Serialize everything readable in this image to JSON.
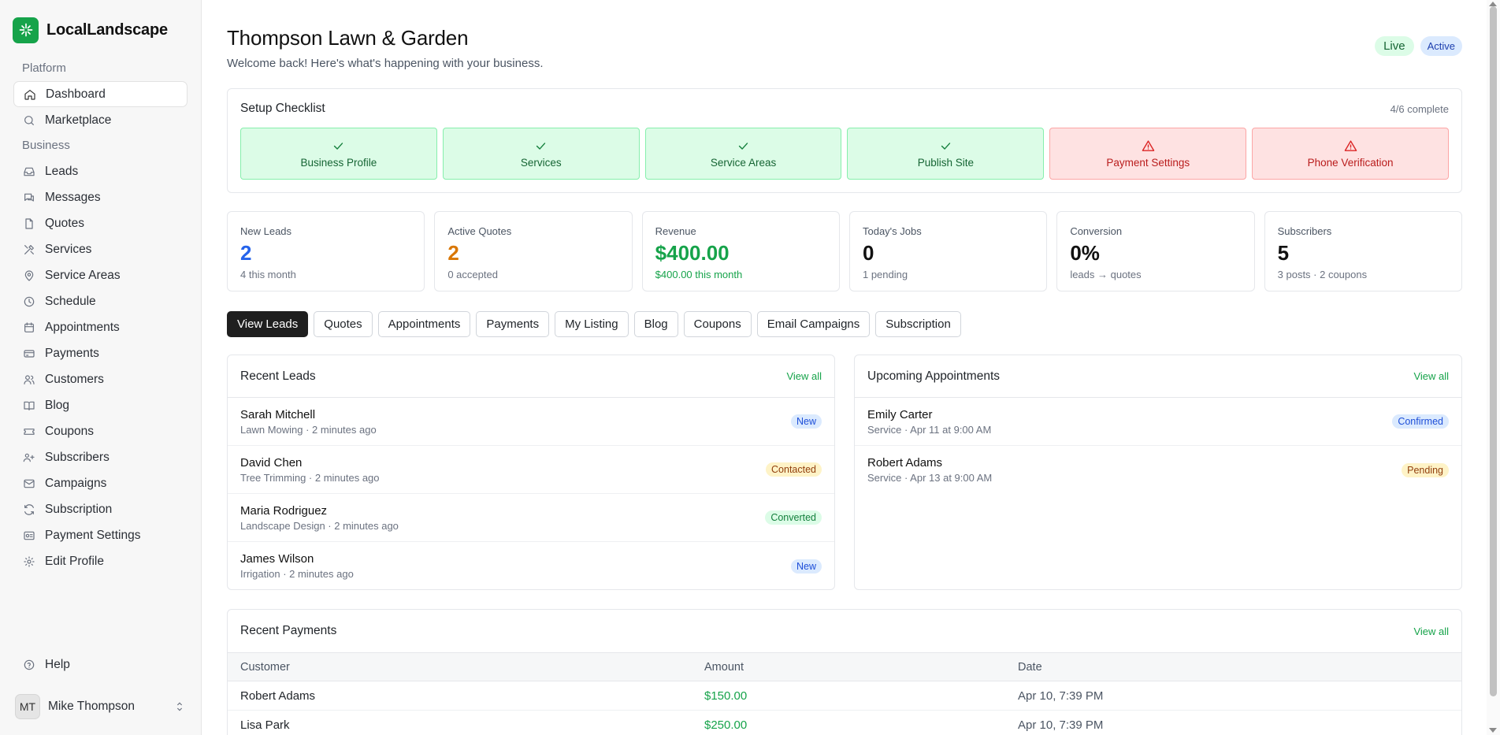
{
  "brand": {
    "name": "LocalLandscape",
    "icon": "sparkle-logo-icon"
  },
  "sidebar": {
    "sections": [
      {
        "label": "Platform",
        "items": [
          {
            "label": "Dashboard",
            "icon": "home-icon",
            "active": true
          },
          {
            "label": "Marketplace",
            "icon": "search-icon"
          }
        ]
      },
      {
        "label": "Business",
        "items": [
          {
            "label": "Leads",
            "icon": "inbox-icon"
          },
          {
            "label": "Messages",
            "icon": "messages-icon"
          },
          {
            "label": "Quotes",
            "icon": "file-icon"
          },
          {
            "label": "Services",
            "icon": "tools-icon"
          },
          {
            "label": "Service Areas",
            "icon": "map-pin-icon"
          },
          {
            "label": "Schedule",
            "icon": "clock-icon"
          },
          {
            "label": "Appointments",
            "icon": "calendar-icon"
          },
          {
            "label": "Payments",
            "icon": "credit-card-icon"
          },
          {
            "label": "Customers",
            "icon": "users-icon"
          },
          {
            "label": "Blog",
            "icon": "book-icon"
          },
          {
            "label": "Coupons",
            "icon": "ticket-icon"
          },
          {
            "label": "Subscribers",
            "icon": "user-group-icon"
          },
          {
            "label": "Campaigns",
            "icon": "mail-icon"
          },
          {
            "label": "Subscription",
            "icon": "refresh-icon"
          },
          {
            "label": "Payment Settings",
            "icon": "wallet-icon"
          },
          {
            "label": "Edit Profile",
            "icon": "gear-icon"
          }
        ]
      }
    ],
    "help": {
      "label": "Help",
      "icon": "help-circle-icon"
    },
    "user": {
      "initials": "MT",
      "name": "Mike Thompson"
    }
  },
  "header": {
    "title": "Thompson Lawn & Garden",
    "subtitle": "Welcome back! Here's what's happening with your business.",
    "badge_live": "Live",
    "badge_active": "Active"
  },
  "checklist": {
    "title": "Setup Checklist",
    "count": "4/6 complete",
    "items": [
      {
        "label": "Business Profile",
        "status": "done"
      },
      {
        "label": "Services",
        "status": "done"
      },
      {
        "label": "Service Areas",
        "status": "done"
      },
      {
        "label": "Publish Site",
        "status": "done"
      },
      {
        "label": "Payment Settings",
        "status": "todo"
      },
      {
        "label": "Phone Verification",
        "status": "todo"
      }
    ]
  },
  "stats": [
    {
      "label": "New Leads",
      "value": "2",
      "sub": "4 this month",
      "color": "#2563eb"
    },
    {
      "label": "Active Quotes",
      "value": "2",
      "sub": "0 accepted",
      "color": "#d97706"
    },
    {
      "label": "Revenue",
      "value": "$400.00",
      "sub": "$400.00 this month",
      "color": "#16a34a"
    },
    {
      "label": "Today's Jobs",
      "value": "0",
      "sub": "1 pending",
      "color": "#111111"
    },
    {
      "label": "Conversion",
      "value": "0%",
      "sub": "leads → quotes",
      "color": "#111111"
    },
    {
      "label": "Subscribers",
      "value": "5",
      "sub": "3 posts · 2 coupons",
      "color": "#111111"
    }
  ],
  "tabs": [
    "View Leads",
    "Quotes",
    "Appointments",
    "Payments",
    "My Listing",
    "Blog",
    "Coupons",
    "Email Campaigns",
    "Subscription"
  ],
  "recent_leads": {
    "title": "Recent Leads",
    "view_all": "View all",
    "rows": [
      {
        "name": "Sarah Mitchell",
        "meta": "Lawn Mowing · 2 minutes ago",
        "status": "New"
      },
      {
        "name": "David Chen",
        "meta": "Tree Trimming · 2 minutes ago",
        "status": "Contacted"
      },
      {
        "name": "Maria Rodriguez",
        "meta": "Landscape Design · 2 minutes ago",
        "status": "Converted"
      },
      {
        "name": "James Wilson",
        "meta": "Irrigation · 2 minutes ago",
        "status": "New"
      }
    ]
  },
  "upcoming_appointments": {
    "title": "Upcoming Appointments",
    "view_all": "View all",
    "rows": [
      {
        "name": "Emily Carter",
        "meta": "Service · Apr 11 at 9:00 AM",
        "status": "Confirmed"
      },
      {
        "name": "Robert Adams",
        "meta": "Service · Apr 13 at 9:00 AM",
        "status": "Pending"
      }
    ]
  },
  "recent_payments": {
    "title": "Recent Payments",
    "view_all": "View all",
    "columns": [
      "Customer",
      "Amount",
      "Date"
    ],
    "rows": [
      {
        "customer": "Robert Adams",
        "amount": "$150.00",
        "date": "Apr 10, 7:39 PM"
      },
      {
        "customer": "Lisa Park",
        "amount": "$250.00",
        "date": "Apr 10, 7:39 PM"
      }
    ]
  }
}
